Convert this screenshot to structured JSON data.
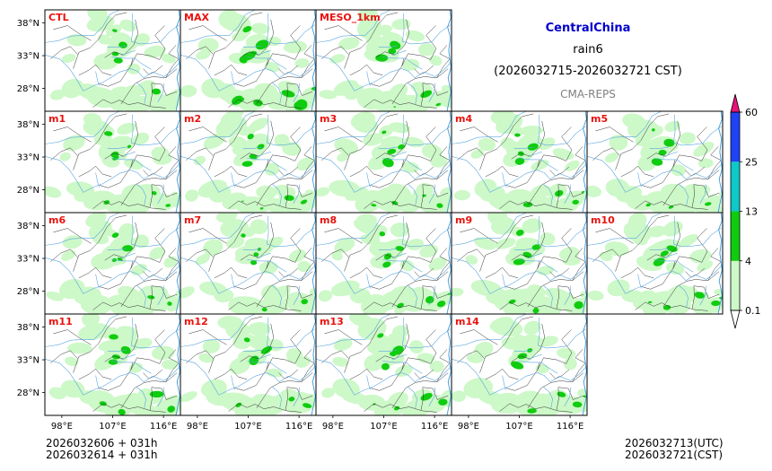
{
  "header": {
    "region": "CentralChina",
    "variable": "rain6",
    "period": "(2026032715-2026032721 CST)",
    "system": "CMA-REPS"
  },
  "footer": {
    "init_utc": "2026032606  +  031h",
    "init_cst": "2026032614  +  031h",
    "valid_utc": "2026032713(UTC)",
    "valid_cst": "2026032721(CST)"
  },
  "colors": {
    "panel_label": "#e8130f",
    "title": "#0000cc",
    "river": "#5aa7e0",
    "border": "#333333",
    "frame": "#000000"
  },
  "chart_data": {
    "type": "heatmap",
    "title": "CentralChina rain6",
    "panels": [
      {
        "label": "CTL",
        "intensity": 0.8
      },
      {
        "label": "MAX",
        "intensity": 1.4
      },
      {
        "label": "MESO_1km",
        "intensity": 0.9
      },
      {
        "label": "m1",
        "intensity": 0.9
      },
      {
        "label": "m2",
        "intensity": 0.9
      },
      {
        "label": "m3",
        "intensity": 0.9
      },
      {
        "label": "m4",
        "intensity": 1.0
      },
      {
        "label": "m5",
        "intensity": 0.9
      },
      {
        "label": "m6",
        "intensity": 0.8
      },
      {
        "label": "m7",
        "intensity": 0.9
      },
      {
        "label": "m8",
        "intensity": 1.0
      },
      {
        "label": "m9",
        "intensity": 1.0
      },
      {
        "label": "m10",
        "intensity": 1.0
      },
      {
        "label": "m11",
        "intensity": 1.0
      },
      {
        "label": "m12",
        "intensity": 0.9
      },
      {
        "label": "m13",
        "intensity": 1.1
      },
      {
        "label": "m14",
        "intensity": 1.0
      }
    ],
    "lat_ticks": [
      "38°N",
      "33°N",
      "28°N"
    ],
    "lon_ticks": [
      "98°E",
      "107°E",
      "116°E"
    ],
    "lat_values": [
      38,
      33,
      28
    ],
    "lon_values": [
      98,
      107,
      116
    ],
    "lat_range": [
      24.5,
      40.0
    ],
    "lon_range": [
      95.0,
      119.0
    ],
    "colorbar": {
      "levels": [
        "0.1",
        "4",
        "13",
        "25",
        "60"
      ],
      "colors": [
        "#cdf8c8",
        "#0fcc0f",
        "#0fc8c8",
        "#1f42f4",
        "#e8127a"
      ],
      "extend": "both"
    }
  }
}
